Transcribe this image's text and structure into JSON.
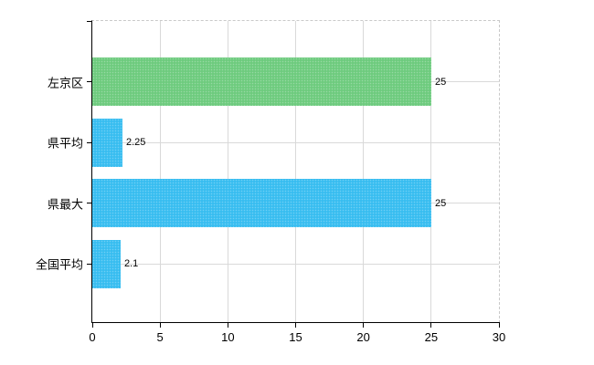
{
  "chart_data": {
    "type": "bar",
    "orientation": "horizontal",
    "title": "",
    "xlabel": "",
    "ylabel": "",
    "categories": [
      "左京区",
      "県平均",
      "県最大",
      "全国平均"
    ],
    "values": [
      25,
      2.25,
      25,
      2.1
    ],
    "value_labels": [
      "25",
      "2.25",
      "25",
      "2.1"
    ],
    "bar_colors": [
      "#6ecb7e",
      "#38bdf0",
      "#38bdf0",
      "#38bdf0"
    ],
    "xlim": [
      0,
      30
    ],
    "x_ticks": [
      0,
      5,
      10,
      15,
      20,
      25,
      30
    ],
    "grid": true,
    "legend": false
  },
  "colors": {
    "background": "#ffffff",
    "bar_green": "#6ecb7e",
    "bar_blue": "#38bdf0",
    "gridline": "#d9d9d9",
    "plot_border_dashed": "#c9c9c9",
    "axis": "#000000",
    "text": "#000000"
  }
}
